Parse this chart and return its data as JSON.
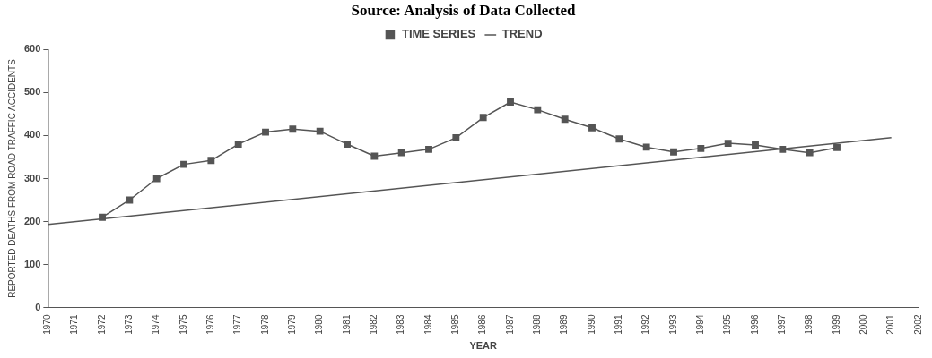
{
  "chart_data": {
    "type": "line",
    "title": "Source: Analysis of Data Collected",
    "xlabel": "YEAR",
    "ylabel": "REPORTED DEATHS FROM ROAD TRAFFIC ACCIDENTS",
    "categories": [
      "1970",
      "1971",
      "1972",
      "1973",
      "1974",
      "1975",
      "1976",
      "1977",
      "1978",
      "1979",
      "1980",
      "1981",
      "1982",
      "1983",
      "1984",
      "1985",
      "1986",
      "1987",
      "1988",
      "1989",
      "1990",
      "1991",
      "1992",
      "1993",
      "1994",
      "1995",
      "1996",
      "1997",
      "1998",
      "1999",
      "2000",
      "2001",
      "2002"
    ],
    "series": [
      {
        "name": "TIME SERIES",
        "color": "#555555",
        "marker": "square",
        "values": [
          null,
          null,
          210,
          250,
          300,
          333,
          342,
          380,
          408,
          415,
          410,
          380,
          352,
          360,
          368,
          395,
          442,
          478,
          460,
          438,
          418,
          392,
          373,
          362,
          370,
          382,
          378,
          368,
          360,
          372,
          null,
          null,
          null
        ]
      },
      {
        "name": "TREND",
        "color": "#555555",
        "marker": "none",
        "values": [
          193,
          null,
          null,
          null,
          null,
          null,
          null,
          null,
          null,
          null,
          null,
          null,
          null,
          null,
          null,
          null,
          null,
          null,
          null,
          null,
          null,
          null,
          null,
          null,
          null,
          null,
          null,
          null,
          null,
          null,
          null,
          395,
          null
        ]
      }
    ],
    "ylim": [
      0,
      600
    ],
    "yticks": [
      0,
      100,
      200,
      300,
      400,
      500,
      600
    ],
    "grid": false,
    "legend": "top",
    "line_style": "solid"
  }
}
